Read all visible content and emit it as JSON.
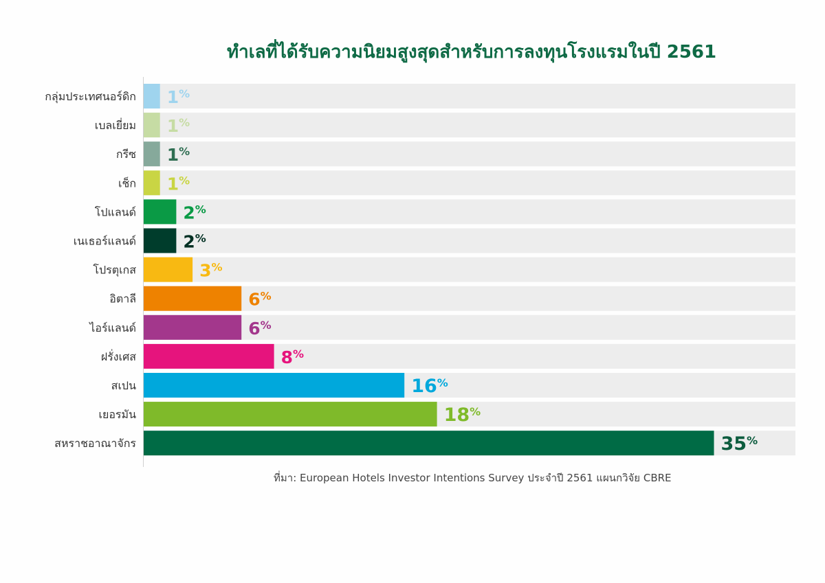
{
  "chart_data": {
    "type": "bar",
    "orientation": "horizontal",
    "title": "ทำเลที่ได้รับความนิยมสูงสุดสำหรับการลงทุนโรงแรมในปี 2561",
    "source": "ที่มา: European Hotels Investor Intentions Survey ประจำปี 2561 แผนกวิจัย CBRE",
    "unit": "%",
    "xlim": [
      0,
      40
    ],
    "grid": false,
    "legend": "none",
    "track_color": "#ededed",
    "categories": [
      "กลุ่มประเทศนอร์ดิก",
      "เบลเยี่ยม",
      "กรีซ",
      "เช็ก",
      "โปแลนด์",
      "เนเธอร์แลนด์",
      "โปรตุเกส",
      "อิตาลี",
      "ไอร์แลนด์",
      "ฝรั่งเศส",
      "สเปน",
      "เยอรมัน",
      "สหราชอาณาจักร"
    ],
    "values": [
      1,
      1,
      1,
      1,
      2,
      2,
      3,
      6,
      6,
      8,
      16,
      18,
      35
    ],
    "colors": [
      "#9fd4ee",
      "#c6dca4",
      "#86a99b",
      "#c9d544",
      "#0a9a45",
      "#003d2c",
      "#f8b912",
      "#ee8200",
      "#a3378c",
      "#e6147d",
      "#00a8dc",
      "#7fba2a",
      "#006b45"
    ],
    "label_colors": [
      "#9fd4ee",
      "#c6dca4",
      "#2f6e52",
      "#c9d544",
      "#0a9a45",
      "#002f22",
      "#f8b912",
      "#ee8200",
      "#a3378c",
      "#e6147d",
      "#00a8dc",
      "#7fba2a",
      "#0d5c3e"
    ]
  }
}
